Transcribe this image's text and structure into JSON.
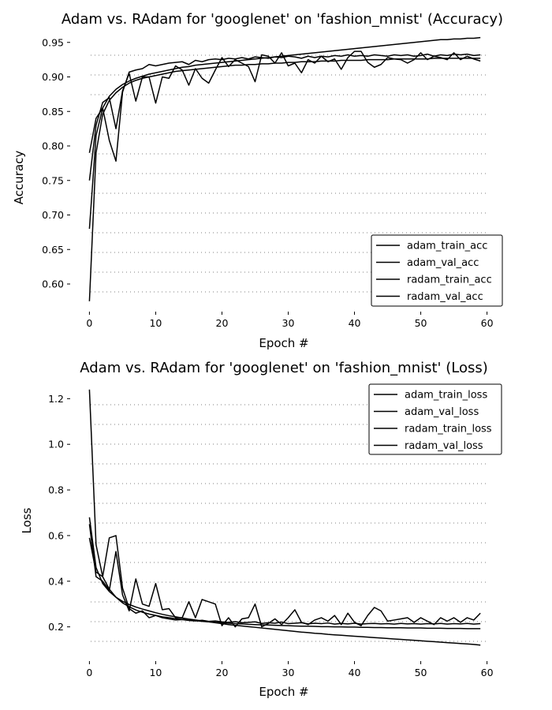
{
  "chart_data": [
    {
      "type": "line",
      "title": "Adam vs. RAdam for 'googlenet' on 'fashion_mnist' (Accuracy)",
      "xlabel": "Epoch #",
      "ylabel": "Accuracy",
      "xlim": [
        -1,
        61
      ],
      "ylim": [
        0.56,
        0.96
      ],
      "xticks": [
        0,
        10,
        20,
        30,
        40,
        50,
        60
      ],
      "yticks": [
        0.6,
        0.65,
        0.7,
        0.75,
        0.8,
        0.85,
        0.9,
        0.95
      ],
      "ytick_labels": [
        "0.60",
        "0.65",
        "0.70",
        "0.75",
        "0.80",
        "0.85",
        "0.90",
        "0.95"
      ],
      "grid": true,
      "legend_position": "lower-right",
      "series": [
        {
          "name": "adam_train_acc",
          "values": [
            0.68,
            0.815,
            0.855,
            0.872,
            0.882,
            0.889,
            0.894,
            0.898,
            0.901,
            0.904,
            0.906,
            0.908,
            0.91,
            0.912,
            0.914,
            0.915,
            0.917,
            0.918,
            0.919,
            0.92,
            0.921,
            0.922,
            0.923,
            0.924,
            0.925,
            0.926,
            0.927,
            0.928,
            0.929,
            0.93,
            0.931,
            0.932,
            0.933,
            0.934,
            0.935,
            0.936,
            0.937,
            0.938,
            0.939,
            0.94,
            0.941,
            0.942,
            0.943,
            0.944,
            0.945,
            0.946,
            0.947,
            0.948,
            0.949,
            0.95,
            0.951,
            0.952,
            0.953,
            0.954,
            0.954,
            0.955,
            0.955,
            0.956,
            0.956,
            0.957
          ]
        },
        {
          "name": "adam_val_acc",
          "values": [
            0.75,
            0.83,
            0.863,
            0.87,
            0.825,
            0.88,
            0.905,
            0.865,
            0.9,
            0.9,
            0.862,
            0.9,
            0.898,
            0.916,
            0.91,
            0.888,
            0.912,
            0.898,
            0.891,
            0.91,
            0.928,
            0.915,
            0.925,
            0.92,
            0.915,
            0.893,
            0.932,
            0.93,
            0.92,
            0.935,
            0.916,
            0.92,
            0.906,
            0.925,
            0.92,
            0.93,
            0.922,
            0.926,
            0.911,
            0.928,
            0.937,
            0.937,
            0.921,
            0.914,
            0.918,
            0.928,
            0.926,
            0.925,
            0.92,
            0.925,
            0.935,
            0.925,
            0.93,
            0.928,
            0.925,
            0.935,
            0.925,
            0.93,
            0.926,
            0.923
          ]
        },
        {
          "name": "radam_train_acc",
          "values": [
            0.575,
            0.79,
            0.846,
            0.866,
            0.877,
            0.885,
            0.891,
            0.895,
            0.898,
            0.9,
            0.902,
            0.904,
            0.906,
            0.908,
            0.909,
            0.91,
            0.911,
            0.912,
            0.913,
            0.914,
            0.915,
            0.916,
            0.917,
            0.917,
            0.918,
            0.918,
            0.919,
            0.919,
            0.92,
            0.92,
            0.921,
            0.921,
            0.922,
            0.922,
            0.922,
            0.923,
            0.923,
            0.923,
            0.924,
            0.924,
            0.924,
            0.924,
            0.925,
            0.925,
            0.925,
            0.925,
            0.926,
            0.926,
            0.926,
            0.926,
            0.926,
            0.926,
            0.927,
            0.927,
            0.927,
            0.927,
            0.927,
            0.927,
            0.927,
            0.927
          ]
        },
        {
          "name": "radam_val_acc",
          "values": [
            0.79,
            0.84,
            0.855,
            0.808,
            0.778,
            0.878,
            0.907,
            0.91,
            0.912,
            0.918,
            0.916,
            0.918,
            0.92,
            0.921,
            0.922,
            0.918,
            0.924,
            0.922,
            0.925,
            0.926,
            0.925,
            0.927,
            0.926,
            0.928,
            0.926,
            0.929,
            0.928,
            0.927,
            0.929,
            0.928,
            0.93,
            0.929,
            0.927,
            0.93,
            0.928,
            0.93,
            0.929,
            0.931,
            0.93,
            0.932,
            0.93,
            0.931,
            0.93,
            0.932,
            0.931,
            0.93,
            0.932,
            0.931,
            0.932,
            0.93,
            0.931,
            0.933,
            0.93,
            0.932,
            0.931,
            0.933,
            0.932,
            0.933,
            0.931,
            0.932
          ]
        }
      ]
    },
    {
      "type": "line",
      "title": "Adam vs. RAdam for 'googlenet' on 'fashion_mnist' (Loss)",
      "xlabel": "Epoch #",
      "ylabel": "Loss",
      "xlim": [
        -1,
        61
      ],
      "ylim": [
        0.05,
        1.26
      ],
      "xticks": [
        0,
        10,
        20,
        30,
        40,
        50,
        60
      ],
      "yticks": [
        0.2,
        0.4,
        0.6,
        0.8,
        1.0,
        1.2
      ],
      "ytick_labels": [
        "0.2",
        "0.4",
        "0.6",
        "0.8",
        "1.0",
        "1.2"
      ],
      "grid": true,
      "legend_position": "upper-right",
      "series": [
        {
          "name": "adam_train_loss",
          "values": [
            0.68,
            0.46,
            0.39,
            0.355,
            0.33,
            0.312,
            0.298,
            0.287,
            0.278,
            0.27,
            0.262,
            0.255,
            0.249,
            0.244,
            0.239,
            0.234,
            0.23,
            0.226,
            0.222,
            0.218,
            0.214,
            0.21,
            0.207,
            0.204,
            0.201,
            0.198,
            0.195,
            0.192,
            0.189,
            0.186,
            0.183,
            0.18,
            0.177,
            0.175,
            0.172,
            0.17,
            0.167,
            0.165,
            0.163,
            0.161,
            0.159,
            0.157,
            0.155,
            0.153,
            0.151,
            0.149,
            0.147,
            0.145,
            0.143,
            0.141,
            0.139,
            0.137,
            0.135,
            0.133,
            0.131,
            0.129,
            0.127,
            0.125,
            0.123,
            0.12
          ]
        },
        {
          "name": "adam_val_loss",
          "values": [
            0.65,
            0.42,
            0.4,
            0.36,
            0.53,
            0.34,
            0.27,
            0.41,
            0.3,
            0.29,
            0.39,
            0.275,
            0.28,
            0.24,
            0.24,
            0.31,
            0.24,
            0.32,
            0.31,
            0.3,
            0.205,
            0.24,
            0.2,
            0.235,
            0.24,
            0.3,
            0.2,
            0.215,
            0.235,
            0.21,
            0.24,
            0.275,
            0.22,
            0.21,
            0.23,
            0.24,
            0.225,
            0.25,
            0.21,
            0.26,
            0.22,
            0.205,
            0.25,
            0.285,
            0.27,
            0.225,
            0.23,
            0.235,
            0.24,
            0.22,
            0.24,
            0.225,
            0.21,
            0.24,
            0.225,
            0.24,
            0.22,
            0.24,
            0.23,
            0.26
          ]
        },
        {
          "name": "radam_train_loss",
          "values": [
            1.24,
            0.56,
            0.42,
            0.365,
            0.33,
            0.305,
            0.288,
            0.274,
            0.264,
            0.256,
            0.25,
            0.244,
            0.24,
            0.236,
            0.233,
            0.23,
            0.227,
            0.224,
            0.222,
            0.22,
            0.218,
            0.216,
            0.214,
            0.213,
            0.211,
            0.21,
            0.209,
            0.208,
            0.207,
            0.206,
            0.205,
            0.204,
            0.203,
            0.203,
            0.202,
            0.201,
            0.201,
            0.2,
            0.2,
            0.199,
            0.199,
            0.198,
            0.198,
            0.197,
            0.197,
            0.196,
            0.196,
            0.196,
            0.195,
            0.195,
            0.195,
            0.194,
            0.194,
            0.194,
            0.193,
            0.193,
            0.193,
            0.192,
            0.192,
            0.192
          ]
        },
        {
          "name": "radam_val_loss",
          "values": [
            0.59,
            0.44,
            0.42,
            0.59,
            0.6,
            0.37,
            0.28,
            0.26,
            0.27,
            0.24,
            0.25,
            0.24,
            0.235,
            0.23,
            0.232,
            0.228,
            0.226,
            0.229,
            0.224,
            0.226,
            0.222,
            0.22,
            0.223,
            0.218,
            0.22,
            0.222,
            0.215,
            0.218,
            0.216,
            0.221,
            0.214,
            0.216,
            0.218,
            0.213,
            0.216,
            0.214,
            0.217,
            0.212,
            0.215,
            0.213,
            0.216,
            0.212,
            0.214,
            0.215,
            0.213,
            0.214,
            0.212,
            0.215,
            0.213,
            0.214,
            0.212,
            0.214,
            0.213,
            0.215,
            0.212,
            0.214,
            0.213,
            0.215,
            0.212,
            0.214
          ]
        }
      ]
    }
  ]
}
